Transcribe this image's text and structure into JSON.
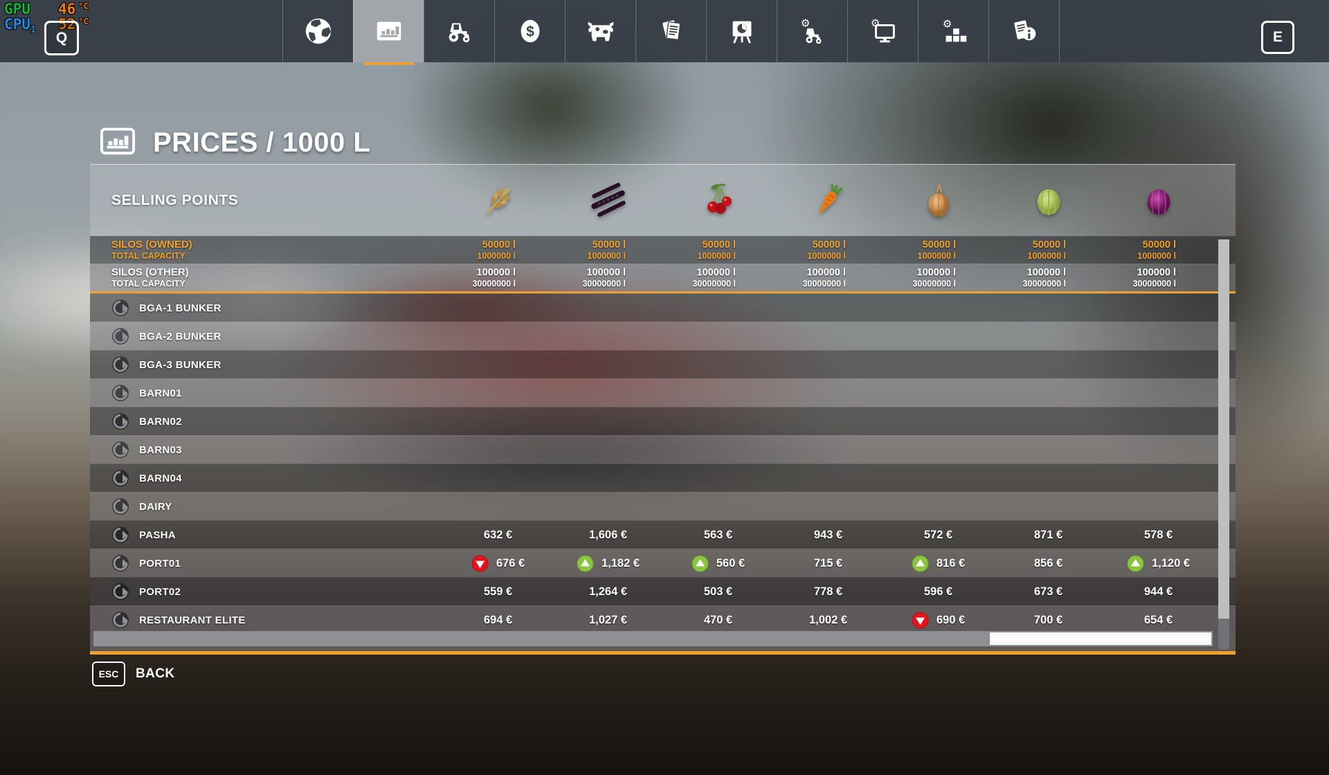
{
  "colors": {
    "accent": "#f0a02c",
    "price_up": "#8bc43f",
    "price_down": "#e3141c"
  },
  "hud": {
    "gpu_label": "GPU",
    "gpu_value": "46",
    "gpu_unit": "°C",
    "cpu_label": "CPU",
    "cpu_sub": "1",
    "cpu_value": "52",
    "cpu_unit": "°C",
    "key_left": "Q",
    "key_right": "E"
  },
  "nav": {
    "active": 1,
    "tabs": [
      {
        "id": "map",
        "icon": "globe-icon"
      },
      {
        "id": "prices",
        "icon": "bar-chart-icon"
      },
      {
        "id": "vehicles",
        "icon": "tractor-icon"
      },
      {
        "id": "finances",
        "icon": "dollar-coin-icon"
      },
      {
        "id": "animals",
        "icon": "cow-icon"
      },
      {
        "id": "contracts",
        "icon": "documents-icon"
      },
      {
        "id": "production",
        "icon": "easel-chart-icon"
      },
      {
        "id": "vehicle-settings",
        "icon": "tractor-gear-icon"
      },
      {
        "id": "game-settings",
        "icon": "monitor-gear-icon"
      },
      {
        "id": "general-settings",
        "icon": "blocks-gear-icon"
      },
      {
        "id": "help",
        "icon": "info-docs-icon"
      }
    ]
  },
  "page": {
    "title": "PRICES / 1000 L"
  },
  "table": {
    "header": "SELLING POINTS",
    "crops": [
      "wheat",
      "bean-pods",
      "cherries",
      "carrot",
      "onion",
      "cabbage",
      "red-cabbage"
    ],
    "silos": [
      {
        "name": "SILOS (OWNED)",
        "sub": "TOTAL CAPACITY",
        "fill": "50000 l",
        "capacity": "1000000 l"
      },
      {
        "name": "SILOS (OTHER)",
        "sub": "TOTAL CAPACITY",
        "fill": "100000 l",
        "capacity": "30000000 l"
      }
    ],
    "rows": [
      {
        "name": "BGA-1 BUNKER",
        "prices": []
      },
      {
        "name": "BGA-2 BUNKER",
        "prices": []
      },
      {
        "name": "BGA-3 BUNKER",
        "prices": []
      },
      {
        "name": "BARN01",
        "prices": []
      },
      {
        "name": "BARN02",
        "prices": []
      },
      {
        "name": "BARN03",
        "prices": []
      },
      {
        "name": "BARN04",
        "prices": []
      },
      {
        "name": "DAIRY",
        "prices": []
      },
      {
        "name": "PASHA",
        "prices": [
          {
            "v": "632 €"
          },
          {
            "v": "1,606 €"
          },
          {
            "v": "563 €"
          },
          {
            "v": "943 €"
          },
          {
            "v": "572 €"
          },
          {
            "v": "871 €"
          },
          {
            "v": "578 €"
          }
        ]
      },
      {
        "name": "PORT01",
        "prices": [
          {
            "v": "676 €",
            "t": "down"
          },
          {
            "v": "1,182 €",
            "t": "up"
          },
          {
            "v": "560 €",
            "t": "up"
          },
          {
            "v": "715 €"
          },
          {
            "v": "816 €",
            "t": "up"
          },
          {
            "v": "856 €"
          },
          {
            "v": "1,120 €",
            "t": "up"
          }
        ]
      },
      {
        "name": "PORT02",
        "prices": [
          {
            "v": "559 €"
          },
          {
            "v": "1,264 €"
          },
          {
            "v": "503 €"
          },
          {
            "v": "778 €"
          },
          {
            "v": "596 €"
          },
          {
            "v": "673 €"
          },
          {
            "v": "944 €"
          }
        ]
      },
      {
        "name": "RESTAURANT ELITE",
        "prices": [
          {
            "v": "694 €"
          },
          {
            "v": "1,027 €"
          },
          {
            "v": "470 €"
          },
          {
            "v": "1,002 €"
          },
          {
            "v": "690 €",
            "t": "down"
          },
          {
            "v": "700 €"
          },
          {
            "v": "654 €"
          }
        ]
      }
    ]
  },
  "footer": {
    "key": "ESC",
    "label": "BACK"
  }
}
